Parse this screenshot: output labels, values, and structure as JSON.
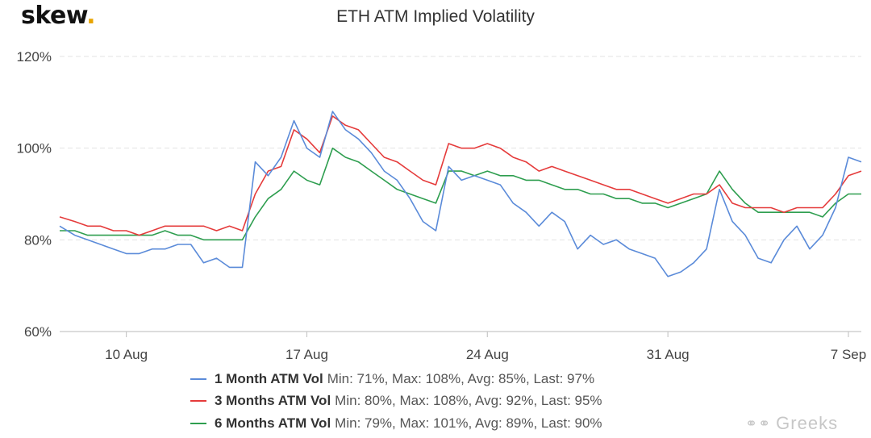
{
  "brand": {
    "name": "skew",
    "dot": "."
  },
  "watermark": {
    "icon": "wechat-icon",
    "text": "Greeks"
  },
  "colors": {
    "series_1m": "#5b8bd9",
    "series_3m": "#e53b3b",
    "series_6m": "#2e9e4f"
  },
  "chart_data": {
    "type": "line",
    "title": "ETH ATM Implied Volatility",
    "xlabel": "",
    "ylabel": "",
    "x_unit": "date",
    "xlim": [
      "2020-08-07T10:00",
      "2020-09-07T12:00"
    ],
    "ylim": [
      60,
      120
    ],
    "y_ticks": [
      "60%",
      "80%",
      "100%",
      "120%"
    ],
    "x_ticks": [
      "10 Aug",
      "17 Aug",
      "24 Aug",
      "31 Aug",
      "7 Sep"
    ],
    "grid": true,
    "legend_position": "bottom",
    "series": [
      {
        "name": "1 Month ATM Vol",
        "stats": "Min: 71%, Max: 108%, Avg: 85%, Last: 97%",
        "color": "#5b8bd9",
        "x": [
          "2020-08-07T10:00",
          "2020-08-08T00:00",
          "2020-08-08T12:00",
          "2020-08-09T00:00",
          "2020-08-09T12:00",
          "2020-08-10T00:00",
          "2020-08-10T12:00",
          "2020-08-11T00:00",
          "2020-08-11T12:00",
          "2020-08-12T00:00",
          "2020-08-12T12:00",
          "2020-08-13T00:00",
          "2020-08-13T12:00",
          "2020-08-14T00:00",
          "2020-08-14T12:00",
          "2020-08-15T00:00",
          "2020-08-15T12:00",
          "2020-08-16T00:00",
          "2020-08-16T12:00",
          "2020-08-17T00:00",
          "2020-08-17T12:00",
          "2020-08-18T00:00",
          "2020-08-18T12:00",
          "2020-08-19T00:00",
          "2020-08-19T12:00",
          "2020-08-20T00:00",
          "2020-08-20T12:00",
          "2020-08-21T00:00",
          "2020-08-21T12:00",
          "2020-08-22T00:00",
          "2020-08-22T12:00",
          "2020-08-23T00:00",
          "2020-08-23T12:00",
          "2020-08-24T00:00",
          "2020-08-24T12:00",
          "2020-08-25T00:00",
          "2020-08-25T12:00",
          "2020-08-26T00:00",
          "2020-08-26T12:00",
          "2020-08-27T00:00",
          "2020-08-27T12:00",
          "2020-08-28T00:00",
          "2020-08-28T12:00",
          "2020-08-29T00:00",
          "2020-08-29T12:00",
          "2020-08-30T00:00",
          "2020-08-30T12:00",
          "2020-08-31T00:00",
          "2020-08-31T12:00",
          "2020-09-01T00:00",
          "2020-09-01T12:00",
          "2020-09-02T00:00",
          "2020-09-02T12:00",
          "2020-09-03T00:00",
          "2020-09-03T12:00",
          "2020-09-04T00:00",
          "2020-09-04T12:00",
          "2020-09-05T00:00",
          "2020-09-05T12:00",
          "2020-09-06T00:00",
          "2020-09-06T12:00",
          "2020-09-07T00:00",
          "2020-09-07T12:00"
        ],
        "values": [
          83,
          81,
          80,
          79,
          78,
          77,
          77,
          78,
          78,
          79,
          79,
          75,
          76,
          74,
          74,
          97,
          94,
          98,
          106,
          100,
          98,
          108,
          104,
          102,
          99,
          95,
          93,
          89,
          84,
          82,
          96,
          93,
          94,
          93,
          92,
          88,
          86,
          83,
          86,
          84,
          78,
          81,
          79,
          80,
          78,
          77,
          76,
          72,
          73,
          75,
          78,
          91,
          84,
          81,
          76,
          75,
          80,
          83,
          78,
          81,
          87,
          98,
          97
        ]
      },
      {
        "name": "3 Months ATM Vol",
        "stats": "Min: 80%, Max: 108%, Avg: 92%, Last: 95%",
        "color": "#e53b3b",
        "x": [
          "2020-08-07T10:00",
          "2020-08-08T00:00",
          "2020-08-08T12:00",
          "2020-08-09T00:00",
          "2020-08-09T12:00",
          "2020-08-10T00:00",
          "2020-08-10T12:00",
          "2020-08-11T00:00",
          "2020-08-11T12:00",
          "2020-08-12T00:00",
          "2020-08-12T12:00",
          "2020-08-13T00:00",
          "2020-08-13T12:00",
          "2020-08-14T00:00",
          "2020-08-14T12:00",
          "2020-08-15T00:00",
          "2020-08-15T12:00",
          "2020-08-16T00:00",
          "2020-08-16T12:00",
          "2020-08-17T00:00",
          "2020-08-17T12:00",
          "2020-08-18T00:00",
          "2020-08-18T12:00",
          "2020-08-19T00:00",
          "2020-08-19T12:00",
          "2020-08-20T00:00",
          "2020-08-20T12:00",
          "2020-08-21T00:00",
          "2020-08-21T12:00",
          "2020-08-22T00:00",
          "2020-08-22T12:00",
          "2020-08-23T00:00",
          "2020-08-23T12:00",
          "2020-08-24T00:00",
          "2020-08-24T12:00",
          "2020-08-25T00:00",
          "2020-08-25T12:00",
          "2020-08-26T00:00",
          "2020-08-26T12:00",
          "2020-08-27T00:00",
          "2020-08-27T12:00",
          "2020-08-28T00:00",
          "2020-08-28T12:00",
          "2020-08-29T00:00",
          "2020-08-29T12:00",
          "2020-08-30T00:00",
          "2020-08-30T12:00",
          "2020-08-31T00:00",
          "2020-08-31T12:00",
          "2020-09-01T00:00",
          "2020-09-01T12:00",
          "2020-09-02T00:00",
          "2020-09-02T12:00",
          "2020-09-03T00:00",
          "2020-09-03T12:00",
          "2020-09-04T00:00",
          "2020-09-04T12:00",
          "2020-09-05T00:00",
          "2020-09-05T12:00",
          "2020-09-06T00:00",
          "2020-09-06T12:00",
          "2020-09-07T00:00",
          "2020-09-07T12:00"
        ],
        "values": [
          85,
          84,
          83,
          83,
          82,
          82,
          81,
          82,
          83,
          83,
          83,
          83,
          82,
          83,
          82,
          90,
          95,
          96,
          104,
          102,
          99,
          107,
          105,
          104,
          101,
          98,
          97,
          95,
          93,
          92,
          101,
          100,
          100,
          101,
          100,
          98,
          97,
          95,
          96,
          95,
          94,
          93,
          92,
          91,
          91,
          90,
          89,
          88,
          89,
          90,
          90,
          92,
          88,
          87,
          87,
          87,
          86,
          87,
          87,
          87,
          90,
          94,
          95
        ]
      },
      {
        "name": "6 Months ATM Vol",
        "stats": "Min: 79%, Max: 101%, Avg: 89%, Last: 90%",
        "color": "#2e9e4f",
        "x": [
          "2020-08-07T10:00",
          "2020-08-08T00:00",
          "2020-08-08T12:00",
          "2020-08-09T00:00",
          "2020-08-09T12:00",
          "2020-08-10T00:00",
          "2020-08-10T12:00",
          "2020-08-11T00:00",
          "2020-08-11T12:00",
          "2020-08-12T00:00",
          "2020-08-12T12:00",
          "2020-08-13T00:00",
          "2020-08-13T12:00",
          "2020-08-14T00:00",
          "2020-08-14T12:00",
          "2020-08-15T00:00",
          "2020-08-15T12:00",
          "2020-08-16T00:00",
          "2020-08-16T12:00",
          "2020-08-17T00:00",
          "2020-08-17T12:00",
          "2020-08-18T00:00",
          "2020-08-18T12:00",
          "2020-08-19T00:00",
          "2020-08-19T12:00",
          "2020-08-20T00:00",
          "2020-08-20T12:00",
          "2020-08-21T00:00",
          "2020-08-21T12:00",
          "2020-08-22T00:00",
          "2020-08-22T12:00",
          "2020-08-23T00:00",
          "2020-08-23T12:00",
          "2020-08-24T00:00",
          "2020-08-24T12:00",
          "2020-08-25T00:00",
          "2020-08-25T12:00",
          "2020-08-26T00:00",
          "2020-08-26T12:00",
          "2020-08-27T00:00",
          "2020-08-27T12:00",
          "2020-08-28T00:00",
          "2020-08-28T12:00",
          "2020-08-29T00:00",
          "2020-08-29T12:00",
          "2020-08-30T00:00",
          "2020-08-30T12:00",
          "2020-08-31T00:00",
          "2020-08-31T12:00",
          "2020-09-01T00:00",
          "2020-09-01T12:00",
          "2020-09-02T00:00",
          "2020-09-02T12:00",
          "2020-09-03T00:00",
          "2020-09-03T12:00",
          "2020-09-04T00:00",
          "2020-09-04T12:00",
          "2020-09-05T00:00",
          "2020-09-05T12:00",
          "2020-09-06T00:00",
          "2020-09-06T12:00",
          "2020-09-07T00:00",
          "2020-09-07T12:00"
        ],
        "values": [
          82,
          82,
          81,
          81,
          81,
          81,
          81,
          81,
          82,
          81,
          81,
          80,
          80,
          80,
          80,
          85,
          89,
          91,
          95,
          93,
          92,
          100,
          98,
          97,
          95,
          93,
          91,
          90,
          89,
          88,
          95,
          95,
          94,
          95,
          94,
          94,
          93,
          93,
          92,
          91,
          91,
          90,
          90,
          89,
          89,
          88,
          88,
          87,
          88,
          89,
          90,
          95,
          91,
          88,
          86,
          86,
          86,
          86,
          86,
          85,
          88,
          90,
          90
        ]
      }
    ]
  }
}
